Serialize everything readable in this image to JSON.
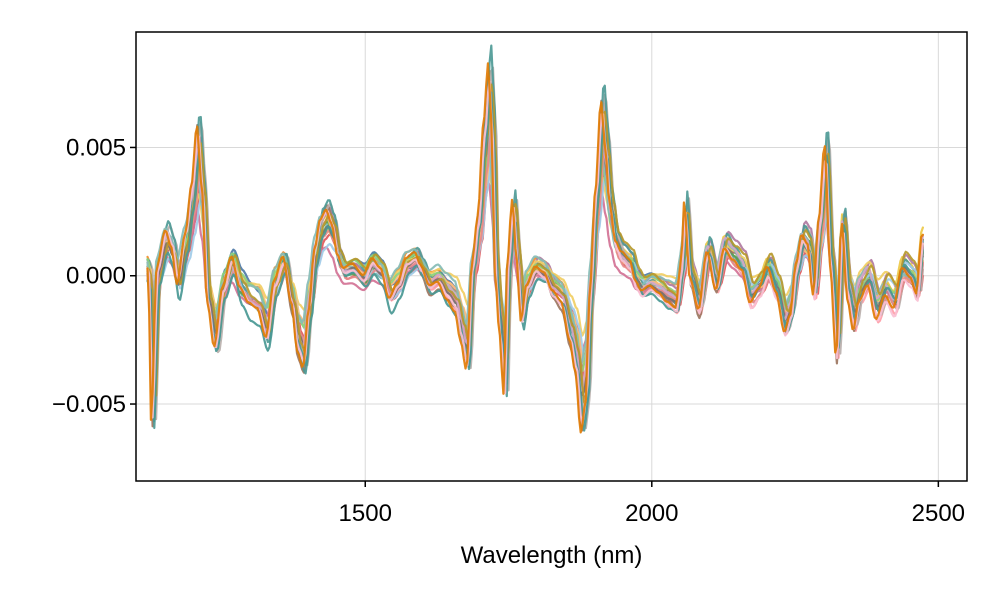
{
  "chart_data": {
    "type": "line",
    "title": "",
    "xlabel": "Wavelength (nm)",
    "ylabel": "",
    "xlim": [
      1100,
      2550
    ],
    "ylim": [
      -0.008,
      0.0095
    ],
    "x_ticks": [
      1500,
      2000,
      2500
    ],
    "x_tick_labels": [
      "1500",
      "2000",
      "2500"
    ],
    "y_ticks": [
      -0.005,
      0.0,
      0.005
    ],
    "y_tick_labels": [
      "−0.005",
      "0.000",
      "0.005"
    ],
    "grid": true,
    "legend": "none",
    "x_range": [
      1120,
      2475
    ],
    "num_series": 24,
    "palette": [
      "#4e79a7",
      "#f28e2b",
      "#e15759",
      "#76b7b2",
      "#59a14f",
      "#edc948",
      "#b07aa1",
      "#ff9da7",
      "#9c755f",
      "#bab0ac",
      "#4e9a96",
      "#f1ce63",
      "#d37295",
      "#a0cbe8",
      "#ffbe7d",
      "#8cd17d",
      "#86bcb6",
      "#e68a8a",
      "#79706e",
      "#d4a6c8",
      "#b6992d",
      "#499894",
      "#fabfd2",
      "#e17c05"
    ],
    "mean_spectrum": {
      "x": [
        1120,
        1125,
        1130,
        1140,
        1155,
        1165,
        1175,
        1190,
        1200,
        1210,
        1218,
        1228,
        1240,
        1255,
        1270,
        1285,
        1300,
        1315,
        1330,
        1345,
        1360,
        1375,
        1385,
        1395,
        1405,
        1415,
        1425,
        1435,
        1445,
        1455,
        1465,
        1480,
        1500,
        1515,
        1530,
        1545,
        1560,
        1575,
        1590,
        1600,
        1615,
        1630,
        1645,
        1660,
        1670,
        1680,
        1690,
        1700,
        1710,
        1718,
        1724,
        1730,
        1738,
        1745,
        1752,
        1760,
        1768,
        1775,
        1785,
        1800,
        1815,
        1830,
        1845,
        1860,
        1870,
        1880,
        1888,
        1895,
        1905,
        1915,
        1922,
        1930,
        1940,
        1950,
        1965,
        1975,
        1985,
        2000,
        2015,
        2030,
        2045,
        2055,
        2060,
        2070,
        2085,
        2100,
        2115,
        2130,
        2145,
        2160,
        2175,
        2190,
        2205,
        2220,
        2235,
        2245,
        2255,
        2265,
        2275,
        2285,
        2295,
        2305,
        2315,
        2325,
        2335,
        2345,
        2355,
        2365,
        2380,
        2395,
        2410,
        2425,
        2440,
        2455,
        2465,
        2475
      ],
      "y": [
        0.0003,
        0.0,
        -0.005,
        0.0002,
        0.0015,
        0.001,
        -0.0002,
        0.0015,
        0.003,
        0.005,
        0.003,
        -0.001,
        -0.0025,
        -0.0005,
        0.0005,
        -0.0005,
        -0.001,
        -0.0012,
        -0.0022,
        -0.0003,
        0.0005,
        -0.001,
        -0.0025,
        -0.003,
        -0.001,
        0.001,
        0.002,
        0.0023,
        0.0018,
        0.0007,
        0.0002,
        0.0003,
        -0.0001,
        0.0005,
        0.0002,
        -0.0008,
        -0.0003,
        0.0005,
        0.0007,
        0.0003,
        -0.0003,
        -0.0001,
        -0.0006,
        -0.001,
        -0.002,
        -0.003,
        0.0005,
        0.002,
        0.005,
        0.007,
        0.005,
        0.0,
        -0.002,
        -0.004,
        0.0005,
        0.0025,
        0.0005,
        -0.0015,
        -0.0003,
        0.0003,
        0.0001,
        -0.0005,
        -0.0008,
        -0.002,
        -0.003,
        -0.005,
        -0.004,
        -0.0005,
        0.003,
        0.006,
        0.0045,
        0.0025,
        0.0012,
        0.0008,
        0.0005,
        -0.0002,
        -0.0005,
        -0.0003,
        -0.0005,
        -0.0008,
        -0.001,
        0.0005,
        0.0025,
        0.0,
        -0.001,
        0.001,
        -0.0002,
        0.0012,
        0.0008,
        0.0004,
        -0.0008,
        -0.0004,
        0.0003,
        -0.0005,
        -0.0018,
        -0.0012,
        0.0005,
        0.0015,
        0.0012,
        -0.0005,
        0.002,
        0.0045,
        0.0005,
        -0.0025,
        0.002,
        -0.0005,
        -0.0015,
        -0.0005,
        0.0,
        -0.0012,
        -0.0005,
        -0.001,
        0.0003,
        0.0,
        -0.0005,
        0.0015
      ]
    }
  }
}
